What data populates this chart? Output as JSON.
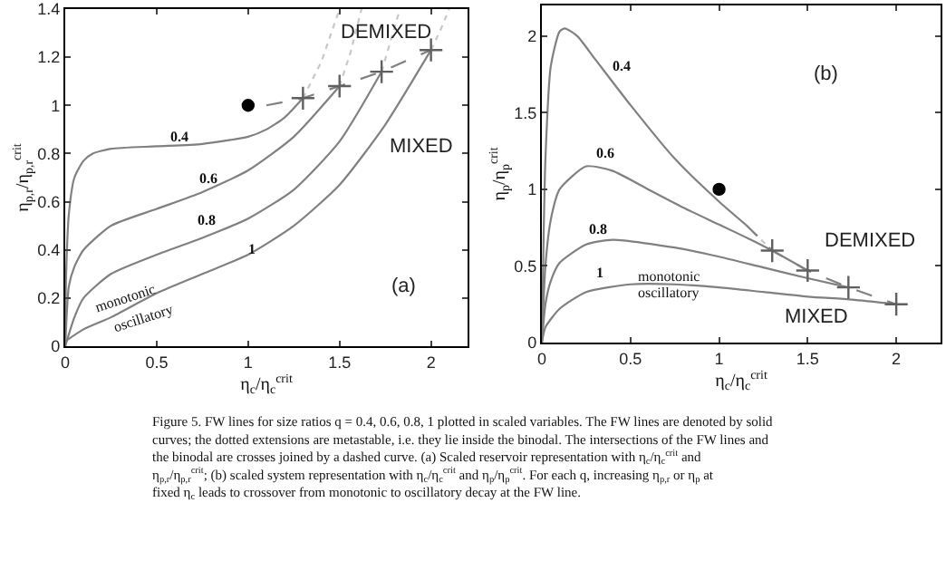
{
  "chart_data": [
    {
      "type": "line",
      "xlabel": "η$_{c}$/η$_{c}$$^{crit}$",
      "ylabel": "η$_{p,r}$/η$_{p,r}$$^{crit}$",
      "xlim": [
        0,
        2.2
      ],
      "ylim": [
        0,
        1.4
      ],
      "xticks": [
        0,
        0.5,
        1,
        1.5,
        2
      ],
      "yticks": [
        0,
        0.2,
        0.4,
        0.6,
        0.8,
        1,
        1.2,
        1.4
      ],
      "legend": false,
      "series": [
        {
          "name": "0.4",
          "color": "#808080",
          "line_style": "solid",
          "x": [
            0,
            0.005,
            0.02,
            0.05,
            0.1,
            0.15,
            0.25,
            0.5,
            0.75,
            1.0,
            1.1,
            1.2,
            1.3
          ],
          "values": [
            0,
            0.3,
            0.55,
            0.7,
            0.77,
            0.8,
            0.82,
            0.83,
            0.84,
            0.87,
            0.9,
            0.95,
            1.03
          ]
        },
        {
          "color": "#c8c8c8",
          "line_style": "dotted",
          "x": [
            1.3,
            1.4,
            1.5
          ],
          "values": [
            1.03,
            1.18,
            1.4
          ]
        },
        {
          "name": "0.6",
          "color": "#808080",
          "line_style": "solid",
          "x": [
            0,
            0.02,
            0.05,
            0.1,
            0.25,
            0.5,
            0.75,
            1.0,
            1.25,
            1.5
          ],
          "values": [
            0,
            0.25,
            0.33,
            0.4,
            0.5,
            0.57,
            0.64,
            0.73,
            0.87,
            1.08
          ]
        },
        {
          "color": "#c8c8c8",
          "line_style": "dotted",
          "x": [
            1.5,
            1.56,
            1.62
          ],
          "values": [
            1.08,
            1.22,
            1.4
          ]
        },
        {
          "name": "0.8",
          "color": "#808080",
          "line_style": "solid",
          "x": [
            0,
            0.05,
            0.1,
            0.25,
            0.5,
            0.75,
            1.0,
            1.25,
            1.5,
            1.73
          ],
          "values": [
            0,
            0.12,
            0.2,
            0.3,
            0.38,
            0.45,
            0.53,
            0.65,
            0.85,
            1.14
          ]
        },
        {
          "color": "#c8c8c8",
          "line_style": "dotted",
          "x": [
            1.73,
            1.78,
            1.83
          ],
          "values": [
            1.14,
            1.27,
            1.4
          ]
        },
        {
          "name": "1",
          "color": "#808080",
          "line_style": "solid",
          "x": [
            0,
            0.1,
            0.25,
            0.5,
            0.75,
            1.0,
            1.25,
            1.5,
            1.75,
            2.0
          ],
          "values": [
            0.02,
            0.07,
            0.12,
            0.22,
            0.3,
            0.38,
            0.5,
            0.67,
            0.92,
            1.23
          ]
        },
        {
          "color": "#c8c8c8",
          "line_style": "dotted",
          "x": [
            2.0,
            2.05,
            2.1
          ],
          "values": [
            1.23,
            1.31,
            1.4
          ]
        },
        {
          "color": "#808080",
          "line_style": "dashed",
          "x": [
            1.1,
            1.3,
            1.5,
            1.73,
            2.0
          ],
          "values": [
            1.0,
            1.03,
            1.08,
            1.14,
            1.23
          ]
        },
        {
          "type": "scatter",
          "color": "#606060",
          "marker": "cross",
          "x": [
            1.3,
            1.5,
            1.73,
            2.0
          ],
          "values": [
            1.03,
            1.08,
            1.14,
            1.23
          ]
        },
        {
          "type": "scatter",
          "color": "#000000",
          "marker": "circle",
          "x": [
            1
          ],
          "values": [
            1
          ]
        }
      ],
      "annotations": [
        "DEMIXED",
        "MIXED",
        "(a)",
        "monotonic",
        "oscillatory",
        "Figure 5. FW lines for size ratios q = 0.4, 0.6, 0.8, 1 plotted in scaled variables. The FW lines are denoted by solid curves; the dotted extensions are metastable, i.e. they lie inside the binodal. The intersections of the FW lines and the binodal are crosses joined by a dashed curve. (a) Scaled reservoir representation with η$_{c}$/η$_{c}$$^{crit}$ and η$_{p,r}$/η$_{p,r}$$^{crit}$; (b) scaled system representation with η$_{c}$/η$_{c}$$^{crit}$ and η$_{p}$/η$_{p}$$^{crit}$. For each q, increasing η$_{p,r}$ or η$_{p}$ at fixed η$_{c}$ leads to crossover from monotonic to oscillatory decay at the FW line."
      ]
    },
    {
      "type": "line",
      "xlabel": "η$_{c}$/η$_{c}$$^{crit}$",
      "ylabel": "η$_{p}$/η$_{p}$$^{crit}$",
      "xlim": [
        0,
        2.25
      ],
      "ylim": [
        0,
        2.2
      ],
      "xticks": [
        0,
        0.5,
        1,
        1.5,
        2
      ],
      "yticks": [
        0,
        0.5,
        1,
        1.5,
        2
      ],
      "legend": false,
      "series": [
        {
          "name": "0.4",
          "color": "#808080",
          "line_style": "solid",
          "x": [
            0,
            0.01,
            0.02,
            0.05,
            0.1,
            0.13,
            0.2,
            0.3,
            0.5,
            0.75,
            1.0,
            1.15
          ],
          "values": [
            0,
            0.7,
            1.2,
            1.8,
            2.03,
            2.05,
            2.0,
            1.85,
            1.55,
            1.2,
            0.92,
            0.77
          ]
        },
        {
          "color": "#c8c8c8",
          "line_style": "dotted",
          "x": [
            1.15,
            1.3
          ],
          "values": [
            0.77,
            0.6
          ]
        },
        {
          "name": "0.6",
          "color": "#808080",
          "line_style": "solid",
          "x": [
            0,
            0.02,
            0.05,
            0.1,
            0.25,
            0.4,
            0.6,
            0.8,
            1.0,
            1.2,
            1.3,
            1.5
          ],
          "values": [
            0,
            0.5,
            0.8,
            1.0,
            1.15,
            1.12,
            1.0,
            0.88,
            0.77,
            0.66,
            0.6,
            0.47
          ]
        },
        {
          "name": "0.8",
          "color": "#808080",
          "line_style": "solid",
          "x": [
            0,
            0.02,
            0.05,
            0.1,
            0.25,
            0.4,
            0.75,
            1.0,
            1.25,
            1.5,
            1.73
          ],
          "values": [
            0,
            0.25,
            0.4,
            0.52,
            0.64,
            0.67,
            0.62,
            0.56,
            0.49,
            0.42,
            0.36
          ]
        },
        {
          "name": "1",
          "color": "#808080",
          "line_style": "solid",
          "x": [
            0,
            0.02,
            0.1,
            0.25,
            0.5,
            0.75,
            1.0,
            1.25,
            1.5,
            1.75,
            2.0
          ],
          "values": [
            0,
            0.1,
            0.22,
            0.33,
            0.38,
            0.38,
            0.36,
            0.33,
            0.3,
            0.28,
            0.25
          ]
        },
        {
          "color": "#808080",
          "line_style": "dashed",
          "x": [
            1.15,
            1.3,
            1.5,
            1.73,
            2.0
          ],
          "values": [
            0.77,
            0.6,
            0.47,
            0.36,
            0.25
          ]
        },
        {
          "type": "scatter",
          "color": "#606060",
          "marker": "cross",
          "x": [
            1.3,
            1.5,
            1.73,
            2.0
          ],
          "values": [
            0.6,
            0.47,
            0.36,
            0.25
          ]
        },
        {
          "type": "scatter",
          "color": "#000000",
          "marker": "circle",
          "x": [
            1
          ],
          "values": [
            1
          ]
        }
      ],
      "annotations": [
        "(b)",
        "DEMIXED",
        "MIXED",
        "monotonic",
        "oscillatory"
      ]
    }
  ]
}
